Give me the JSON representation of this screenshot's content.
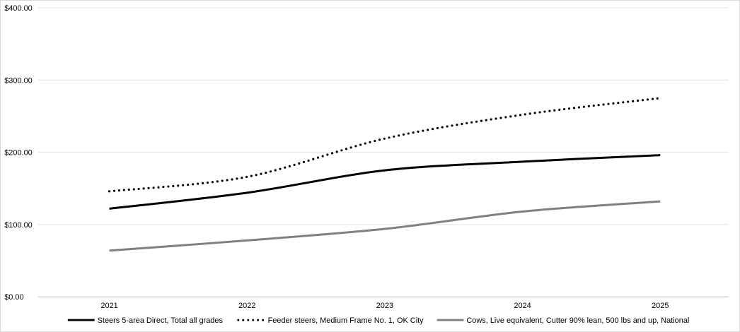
{
  "chart_data": {
    "type": "line",
    "title": "",
    "xlabel": "",
    "ylabel": "",
    "categories": [
      "2021",
      "2022",
      "2023",
      "2024",
      "2025"
    ],
    "ylim": [
      0,
      400
    ],
    "yticks": [
      0,
      100,
      200,
      300,
      400
    ],
    "ytick_labels": [
      "$0.00",
      "$100.00",
      "$200.00",
      "$300.00",
      "$400.00"
    ],
    "grid": true,
    "legend_position": "bottom",
    "series": [
      {
        "name": "Steers 5-area Direct, Total all grades",
        "values": [
          122,
          144,
          175,
          187,
          196
        ],
        "color": "#000000",
        "dash": "solid"
      },
      {
        "name": "Feeder steers, Medium Frame No. 1, OK City",
        "values": [
          146,
          166,
          219,
          252,
          275
        ],
        "color": "#000000",
        "dash": "dotted"
      },
      {
        "name": "Cows, Live equivalent, Cutter 90% lean, 500 lbs and up, National",
        "values": [
          64,
          78,
          94,
          118,
          132
        ],
        "color": "#808080",
        "dash": "solid"
      }
    ]
  }
}
